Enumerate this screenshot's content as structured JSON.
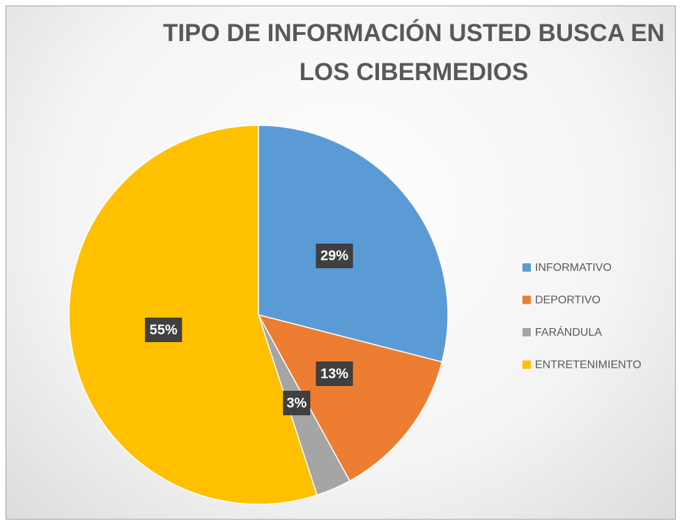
{
  "chart_data": {
    "type": "pie",
    "title": "TIPO DE INFORMACIÓN USTED BUSCA EN LOS CIBERMEDIOS",
    "categories": [
      "INFORMATIVO",
      "DEPORTIVO",
      "FARÁNDULA",
      "ENTRETENIMIENTO"
    ],
    "values": [
      29,
      13,
      3,
      55
    ],
    "value_labels": [
      "29%",
      "13%",
      "3%",
      "55%"
    ],
    "colors": [
      "#5b9bd5",
      "#ed7d31",
      "#a5a5a5",
      "#ffc000"
    ],
    "legend": "right"
  }
}
